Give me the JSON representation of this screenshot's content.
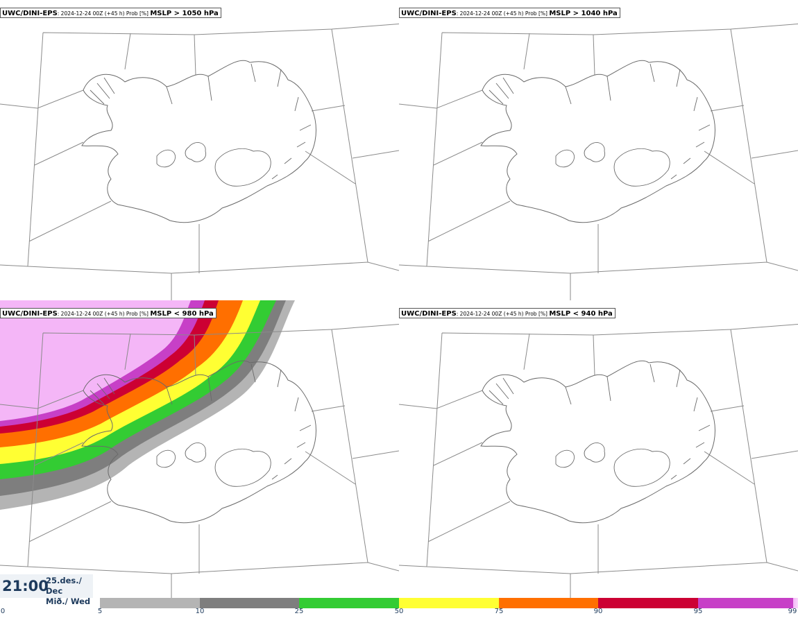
{
  "panels": [
    {
      "model": "UWC/DINI-EPS",
      "meta": ": 2024-12-24 00Z (+45 h) Prob [%] ",
      "threshold": "MSLP > 1050 hPa"
    },
    {
      "model": "UWC/DINI-EPS",
      "meta": ": 2024-12-24 00Z (+45 h) Prob [%] ",
      "threshold": "MSLP > 1040 hPa"
    },
    {
      "model": "UWC/DINI-EPS",
      "meta": ": 2024-12-24 00Z (+45 h) Prob [%] ",
      "threshold": "MSLP < 980 hPa"
    },
    {
      "model": "UWC/DINI-EPS",
      "meta": ": 2024-12-24 00Z (+45 h) Prob [%] ",
      "threshold": "MSLP < 940 hPa"
    }
  ],
  "valid_time": {
    "time": "21:00",
    "date_line1": "25.des./ Dec",
    "date_line2": "Mið./ Wed"
  },
  "colorbar": {
    "ticks": [
      "0",
      "5",
      "10",
      "25",
      "50",
      "75",
      "90",
      "95",
      "99"
    ],
    "colors": [
      "#ffffff",
      "#b4b4b4",
      "#7e7e7e",
      "#33cc33",
      "#ffff33",
      "#ff6f00",
      "#cc0033",
      "#c740c7",
      "#f4b6f7"
    ]
  }
}
